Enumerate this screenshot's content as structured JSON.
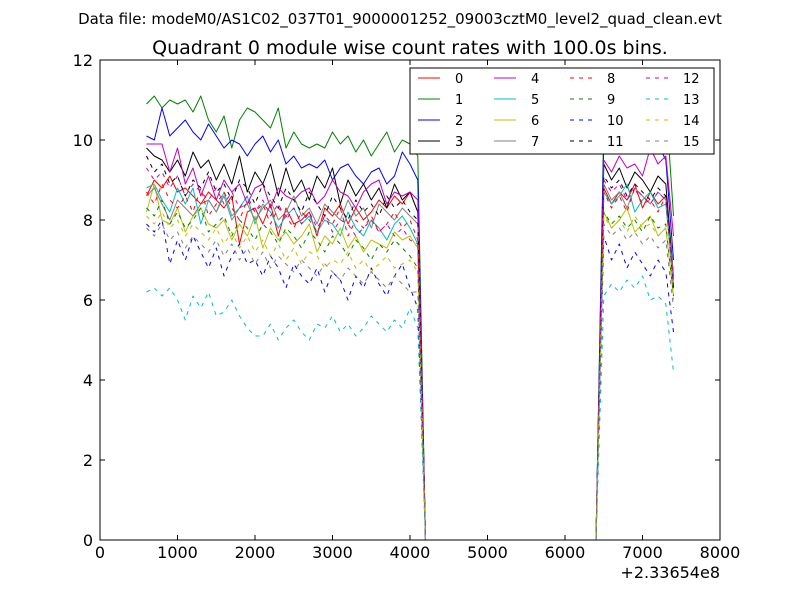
{
  "figure": {
    "suptitle": "Data file: modeM0/AS1C02_037T01_9000001252_09003cztM0_level2_quad_clean.evt"
  },
  "chart_data": {
    "type": "line",
    "title": "Quadrant 0 module wise count rates with 100.0s bins.",
    "xlabel": "",
    "ylabel": "",
    "x_offset_label": "+2.33654e8",
    "xlim": [
      0,
      8000
    ],
    "ylim": [
      0,
      12
    ],
    "xticks": [
      0,
      1000,
      2000,
      3000,
      4000,
      5000,
      6000,
      7000,
      8000
    ],
    "yticks": [
      0,
      2,
      4,
      6,
      8,
      10,
      12
    ],
    "xtick_labels": [
      "0",
      "1000",
      "2000",
      "3000",
      "4000",
      "5000",
      "6000",
      "7000",
      "8000"
    ],
    "ytick_labels": [
      "0",
      "2",
      "4",
      "6",
      "8",
      "10",
      "12"
    ],
    "legend_position": "top-right",
    "legend_columns": 4,
    "x": [
      600,
      700,
      800,
      900,
      1000,
      1100,
      1200,
      1300,
      1400,
      1500,
      1600,
      1700,
      1800,
      1900,
      2000,
      2100,
      2200,
      2300,
      2400,
      2500,
      2600,
      2700,
      2800,
      2900,
      3000,
      3100,
      3200,
      3300,
      3400,
      3500,
      3600,
      3700,
      3800,
      3900,
      4000,
      4100,
      4200,
      4300,
      4400,
      4500,
      4600,
      4700,
      4800,
      4900,
      5000,
      5100,
      5200,
      5300,
      5400,
      5500,
      5600,
      5700,
      5800,
      5900,
      6000,
      6100,
      6200,
      6300,
      6400,
      6500,
      6600,
      6700,
      6800,
      6900,
      7000,
      7100,
      7200,
      7300,
      7400
    ],
    "series": [
      {
        "name": "0",
        "color": "#ff0000",
        "dash": "solid",
        "values": [
          8.6,
          9.0,
          8.8,
          9.1,
          8.7,
          8.8,
          8.6,
          8.4,
          8.7,
          8.5,
          8.3,
          8.6,
          7.4,
          8.2,
          8.3,
          7.9,
          8.4,
          7.6,
          8.3,
          7.9,
          8.0,
          8.2,
          7.6,
          8.3,
          8.1,
          8.4,
          7.9,
          8.3,
          8.0,
          8.2,
          8.5,
          8.3,
          8.6,
          8.4,
          8.7,
          8.2,
          0,
          0,
          0,
          0,
          0,
          0,
          0,
          0,
          0,
          0,
          0,
          0,
          0,
          0,
          0,
          0,
          0,
          0,
          0,
          0,
          0,
          0,
          0,
          8.8,
          8.4,
          8.7,
          8.5,
          8.9,
          8.3,
          8.7,
          8.4,
          8.6,
          6.3
        ]
      },
      {
        "name": "1",
        "color": "#008000",
        "dash": "solid",
        "values": [
          10.9,
          11.1,
          10.8,
          11.0,
          10.9,
          11.0,
          10.7,
          11.1,
          10.5,
          10.2,
          10.6,
          9.8,
          10.5,
          10.8,
          10.7,
          10.5,
          10.3,
          10.8,
          9.8,
          10.2,
          9.9,
          9.8,
          9.9,
          9.8,
          10.2,
          9.9,
          10.1,
          9.7,
          10.0,
          9.6,
          9.9,
          10.2,
          9.7,
          10.0,
          9.9,
          9.6,
          0,
          0,
          0,
          0,
          0,
          0,
          0,
          0,
          0,
          0,
          0,
          0,
          0,
          0,
          0,
          0,
          0,
          0,
          0,
          0,
          0,
          0,
          0,
          10.4,
          10.6,
          10.9,
          11.2,
          11.3,
          10.8,
          10.6,
          11.0,
          11.0,
          8.1
        ]
      },
      {
        "name": "2",
        "color": "#0000ff",
        "dash": "solid",
        "values": [
          10.1,
          10.0,
          10.8,
          10.1,
          10.3,
          10.5,
          10.2,
          10.0,
          10.4,
          10.1,
          9.8,
          10.0,
          9.9,
          9.6,
          9.9,
          10.1,
          9.7,
          10.0,
          9.4,
          9.6,
          9.3,
          9.4,
          9.3,
          9.5,
          9.0,
          9.3,
          9.4,
          9.1,
          8.9,
          9.2,
          9.3,
          8.9,
          9.1,
          9.7,
          9.4,
          9.0,
          0,
          0,
          0,
          0,
          0,
          0,
          0,
          0,
          0,
          0,
          0,
          0,
          0,
          0,
          0,
          0,
          0,
          0,
          0,
          0,
          0,
          0,
          0,
          10.1,
          9.9,
          10.2,
          9.7,
          10.0,
          9.8,
          9.7,
          9.9,
          9.5,
          7.0
        ]
      },
      {
        "name": "3",
        "color": "#000000",
        "dash": "solid",
        "values": [
          9.8,
          9.6,
          9.5,
          9.2,
          9.5,
          9.1,
          9.7,
          9.3,
          9.5,
          9.0,
          9.4,
          8.9,
          9.6,
          8.7,
          9.2,
          8.9,
          9.4,
          8.6,
          9.3,
          8.7,
          9.0,
          8.5,
          9.1,
          8.8,
          9.3,
          8.4,
          9.0,
          8.6,
          8.9,
          8.5,
          8.8,
          8.3,
          8.9,
          8.5,
          8.7,
          8.2,
          0,
          0,
          0,
          0,
          0,
          0,
          0,
          0,
          0,
          0,
          0,
          0,
          0,
          0,
          0,
          0,
          0,
          0,
          0,
          0,
          0,
          0,
          0,
          9.4,
          9.0,
          9.3,
          8.8,
          9.2,
          9.0,
          8.7,
          9.1,
          8.9,
          6.6
        ]
      },
      {
        "name": "4",
        "color": "#c000c0",
        "dash": "solid",
        "values": [
          9.9,
          9.9,
          9.9,
          9.2,
          9.8,
          8.9,
          9.3,
          8.6,
          9.1,
          8.5,
          9.0,
          8.7,
          8.9,
          8.4,
          8.8,
          8.9,
          8.3,
          8.8,
          8.6,
          8.5,
          8.7,
          8.8,
          8.4,
          8.6,
          9.0,
          8.7,
          8.6,
          8.3,
          8.7,
          8.9,
          9.0,
          8.4,
          8.7,
          8.6,
          8.7,
          8.5,
          0,
          0,
          0,
          0,
          0,
          0,
          0,
          0,
          0,
          0,
          0,
          0,
          0,
          0,
          0,
          0,
          0,
          0,
          0,
          0,
          0,
          0,
          0,
          9.5,
          9.2,
          9.6,
          9.3,
          9.4,
          9.1,
          9.8,
          9.4,
          9.6,
          7.6
        ]
      },
      {
        "name": "5",
        "color": "#00bfbf",
        "dash": "solid",
        "values": [
          8.8,
          8.9,
          8.5,
          8.2,
          8.8,
          8.4,
          8.8,
          7.9,
          8.5,
          8.2,
          8.7,
          8.1,
          8.3,
          8.6,
          7.9,
          8.4,
          8.2,
          7.8,
          8.1,
          8.3,
          7.9,
          8.1,
          7.7,
          8.0,
          7.9,
          7.6,
          8.2,
          7.8,
          7.6,
          8.0,
          7.8,
          7.5,
          7.9,
          8.1,
          7.8,
          7.4,
          0,
          0,
          0,
          0,
          0,
          0,
          0,
          0,
          0,
          0,
          0,
          0,
          0,
          0,
          0,
          0,
          0,
          0,
          0,
          0,
          0,
          0,
          0,
          8.7,
          8.4,
          8.6,
          8.9,
          8.2,
          8.5,
          8.7,
          8.3,
          8.4,
          6.4
        ]
      },
      {
        "name": "6",
        "color": "#bfbf00",
        "dash": "solid",
        "values": [
          8.2,
          8.9,
          8.0,
          7.9,
          8.3,
          7.7,
          8.1,
          8.3,
          7.9,
          7.8,
          8.0,
          7.5,
          7.9,
          7.6,
          8.1,
          7.3,
          7.8,
          7.5,
          7.7,
          7.4,
          7.6,
          7.9,
          7.2,
          7.6,
          7.4,
          7.8,
          7.3,
          7.6,
          7.2,
          7.5,
          7.4,
          7.3,
          7.7,
          7.5,
          7.6,
          7.3,
          0,
          0,
          0,
          0,
          0,
          0,
          0,
          0,
          0,
          0,
          0,
          0,
          0,
          0,
          0,
          0,
          0,
          0,
          0,
          0,
          0,
          0,
          0,
          8.2,
          7.8,
          8.0,
          8.3,
          7.7,
          7.9,
          8.1,
          7.6,
          7.8,
          6.1
        ]
      },
      {
        "name": "7",
        "color": "#808080",
        "dash": "solid",
        "values": [
          8.6,
          8.8,
          8.4,
          8.0,
          8.5,
          8.3,
          8.1,
          8.4,
          8.5,
          8.2,
          8.6,
          8.0,
          8.3,
          8.4,
          8.0,
          8.3,
          8.5,
          8.0,
          8.2,
          8.6,
          8.1,
          8.3,
          7.9,
          8.4,
          8.2,
          8.0,
          8.5,
          8.1,
          8.3,
          7.8,
          8.4,
          8.2,
          8.0,
          8.3,
          8.1,
          7.9,
          0,
          0,
          0,
          0,
          0,
          0,
          0,
          0,
          0,
          0,
          0,
          0,
          0,
          0,
          0,
          0,
          0,
          0,
          0,
          0,
          0,
          0,
          0,
          8.9,
          8.5,
          8.7,
          8.3,
          8.8,
          8.6,
          8.4,
          8.7,
          8.5,
          6.6
        ]
      },
      {
        "name": "8",
        "color": "#ff0000",
        "dash": "dashed",
        "values": [
          8.7,
          8.4,
          8.9,
          8.5,
          8.3,
          8.6,
          8.2,
          8.8,
          8.1,
          8.4,
          8.7,
          8.3,
          8.0,
          8.5,
          8.2,
          8.4,
          7.9,
          8.3,
          8.1,
          7.8,
          8.2,
          8.0,
          7.7,
          8.1,
          7.9,
          8.3,
          7.6,
          8.0,
          7.8,
          8.1,
          7.7,
          7.9,
          8.2,
          7.8,
          8.0,
          7.5,
          0,
          0,
          0,
          0,
          0,
          0,
          0,
          0,
          0,
          0,
          0,
          0,
          0,
          0,
          0,
          0,
          0,
          0,
          0,
          0,
          0,
          0,
          0,
          8.7,
          8.3,
          8.6,
          8.2,
          8.8,
          8.4,
          8.5,
          8.2,
          8.6,
          6.5
        ]
      },
      {
        "name": "9",
        "color": "#008000",
        "dash": "dashed",
        "values": [
          8.3,
          8.1,
          8.5,
          7.9,
          8.2,
          7.8,
          8.0,
          8.3,
          7.7,
          7.9,
          8.1,
          7.6,
          8.0,
          7.8,
          7.5,
          7.9,
          7.7,
          7.4,
          7.8,
          7.6,
          7.3,
          7.7,
          7.5,
          7.2,
          7.6,
          7.4,
          7.1,
          7.5,
          7.3,
          7.0,
          7.4,
          7.2,
          7.5,
          7.3,
          7.1,
          6.8,
          0,
          0,
          0,
          0,
          0,
          0,
          0,
          0,
          0,
          0,
          0,
          0,
          0,
          0,
          0,
          0,
          0,
          0,
          0,
          0,
          0,
          0,
          0,
          8.2,
          7.9,
          8.1,
          7.8,
          8.0,
          7.7,
          8.1,
          7.8,
          7.9,
          6.1
        ]
      },
      {
        "name": "10",
        "color": "#0000ff",
        "dash": "dashed",
        "values": [
          7.9,
          7.7,
          8.0,
          6.9,
          7.5,
          7.0,
          7.6,
          7.2,
          6.8,
          7.3,
          6.6,
          7.1,
          7.4,
          6.9,
          7.0,
          6.6,
          7.1,
          6.8,
          6.3,
          6.9,
          6.6,
          6.4,
          6.8,
          6.2,
          6.7,
          6.5,
          6.0,
          6.6,
          6.3,
          6.8,
          6.4,
          6.1,
          6.6,
          6.9,
          6.3,
          5.8,
          0,
          0,
          0,
          0,
          0,
          0,
          0,
          0,
          0,
          0,
          0,
          0,
          0,
          0,
          0,
          0,
          0,
          0,
          0,
          0,
          0,
          0,
          0,
          7.6,
          7.0,
          7.4,
          6.8,
          7.2,
          6.9,
          6.6,
          7.0,
          6.7,
          5.2
        ]
      },
      {
        "name": "11",
        "color": "#000000",
        "dash": "dashed",
        "values": [
          9.6,
          9.2,
          9.4,
          8.9,
          9.1,
          8.6,
          9.0,
          8.8,
          9.2,
          8.7,
          8.9,
          8.5,
          9.0,
          8.8,
          8.4,
          8.9,
          8.6,
          8.3,
          8.8,
          8.5,
          8.2,
          8.7,
          8.4,
          8.1,
          8.6,
          8.3,
          8.0,
          8.5,
          8.2,
          8.4,
          8.1,
          8.6,
          8.3,
          8.5,
          8.2,
          8.0,
          0,
          0,
          0,
          0,
          0,
          0,
          0,
          0,
          0,
          0,
          0,
          0,
          0,
          0,
          0,
          0,
          0,
          0,
          0,
          0,
          0,
          0,
          0,
          9.1,
          8.8,
          9.0,
          8.6,
          8.9,
          8.7,
          8.5,
          8.8,
          8.6,
          6.3
        ]
      },
      {
        "name": "12",
        "color": "#c000c0",
        "dash": "dashed",
        "values": [
          9.3,
          9.0,
          9.2,
          8.8,
          9.1,
          8.6,
          8.9,
          8.7,
          8.5,
          8.8,
          8.4,
          8.7,
          8.3,
          8.6,
          8.2,
          8.5,
          8.1,
          8.4,
          8.0,
          8.3,
          7.9,
          8.2,
          7.8,
          8.1,
          7.7,
          8.0,
          7.9,
          7.6,
          7.8,
          8.0,
          7.7,
          7.9,
          7.6,
          7.8,
          7.5,
          7.4,
          0,
          0,
          0,
          0,
          0,
          0,
          0,
          0,
          0,
          0,
          0,
          0,
          0,
          0,
          0,
          0,
          0,
          0,
          0,
          0,
          0,
          0,
          0,
          9.0,
          8.7,
          8.9,
          8.5,
          8.8,
          8.6,
          8.4,
          8.7,
          8.5,
          6.4
        ]
      },
      {
        "name": "13",
        "color": "#00bfbf",
        "dash": "dashed",
        "values": [
          6.2,
          6.3,
          6.1,
          6.3,
          6.0,
          5.5,
          6.1,
          5.8,
          6.2,
          5.6,
          5.7,
          6.0,
          5.6,
          5.3,
          5.1,
          5.1,
          5.4,
          5.0,
          5.3,
          5.5,
          5.2,
          5.0,
          5.4,
          5.3,
          5.6,
          5.2,
          5.4,
          5.1,
          5.3,
          5.6,
          5.4,
          5.2,
          5.5,
          5.3,
          5.8,
          5.3,
          0,
          0,
          0,
          0,
          0,
          0,
          0,
          0,
          0,
          0,
          0,
          0,
          0,
          0,
          0,
          0,
          0,
          0,
          0,
          0,
          0,
          0,
          0,
          6.1,
          6.4,
          6.2,
          6.5,
          6.3,
          6.6,
          6.0,
          6.1,
          5.9,
          4.2
        ]
      },
      {
        "name": "14",
        "color": "#bfbf00",
        "dash": "dashed",
        "values": [
          8.1,
          7.9,
          8.2,
          7.8,
          8.0,
          7.6,
          7.9,
          7.7,
          7.5,
          7.8,
          7.4,
          7.7,
          7.3,
          7.6,
          7.2,
          7.5,
          7.1,
          7.4,
          7.0,
          7.3,
          6.9,
          7.2,
          7.1,
          6.8,
          7.0,
          6.9,
          7.2,
          6.8,
          7.0,
          6.7,
          6.9,
          7.1,
          6.8,
          6.9,
          7.0,
          6.7,
          0,
          0,
          0,
          0,
          0,
          0,
          0,
          0,
          0,
          0,
          0,
          0,
          0,
          0,
          0,
          0,
          0,
          0,
          0,
          0,
          0,
          0,
          0,
          8.1,
          7.8,
          8.0,
          7.7,
          8.1,
          7.8,
          7.9,
          7.6,
          7.8,
          6.0
        ]
      },
      {
        "name": "15",
        "color": "#808080",
        "dash": "dashed",
        "values": [
          7.8,
          7.6,
          7.9,
          7.5,
          7.7,
          7.3,
          7.6,
          7.4,
          7.2,
          7.5,
          7.1,
          7.4,
          7.0,
          7.3,
          6.9,
          7.2,
          6.8,
          7.1,
          6.9,
          6.7,
          7.0,
          6.8,
          6.6,
          6.9,
          6.7,
          6.5,
          6.8,
          6.6,
          6.4,
          6.7,
          6.5,
          6.3,
          6.6,
          6.4,
          6.2,
          6.2,
          0,
          0,
          0,
          0,
          0,
          0,
          0,
          0,
          0,
          0,
          0,
          0,
          0,
          0,
          0,
          0,
          0,
          0,
          0,
          0,
          0,
          0,
          0,
          7.9,
          7.6,
          7.8,
          7.5,
          7.7,
          7.4,
          7.6,
          7.3,
          7.5,
          5.8
        ]
      }
    ]
  }
}
